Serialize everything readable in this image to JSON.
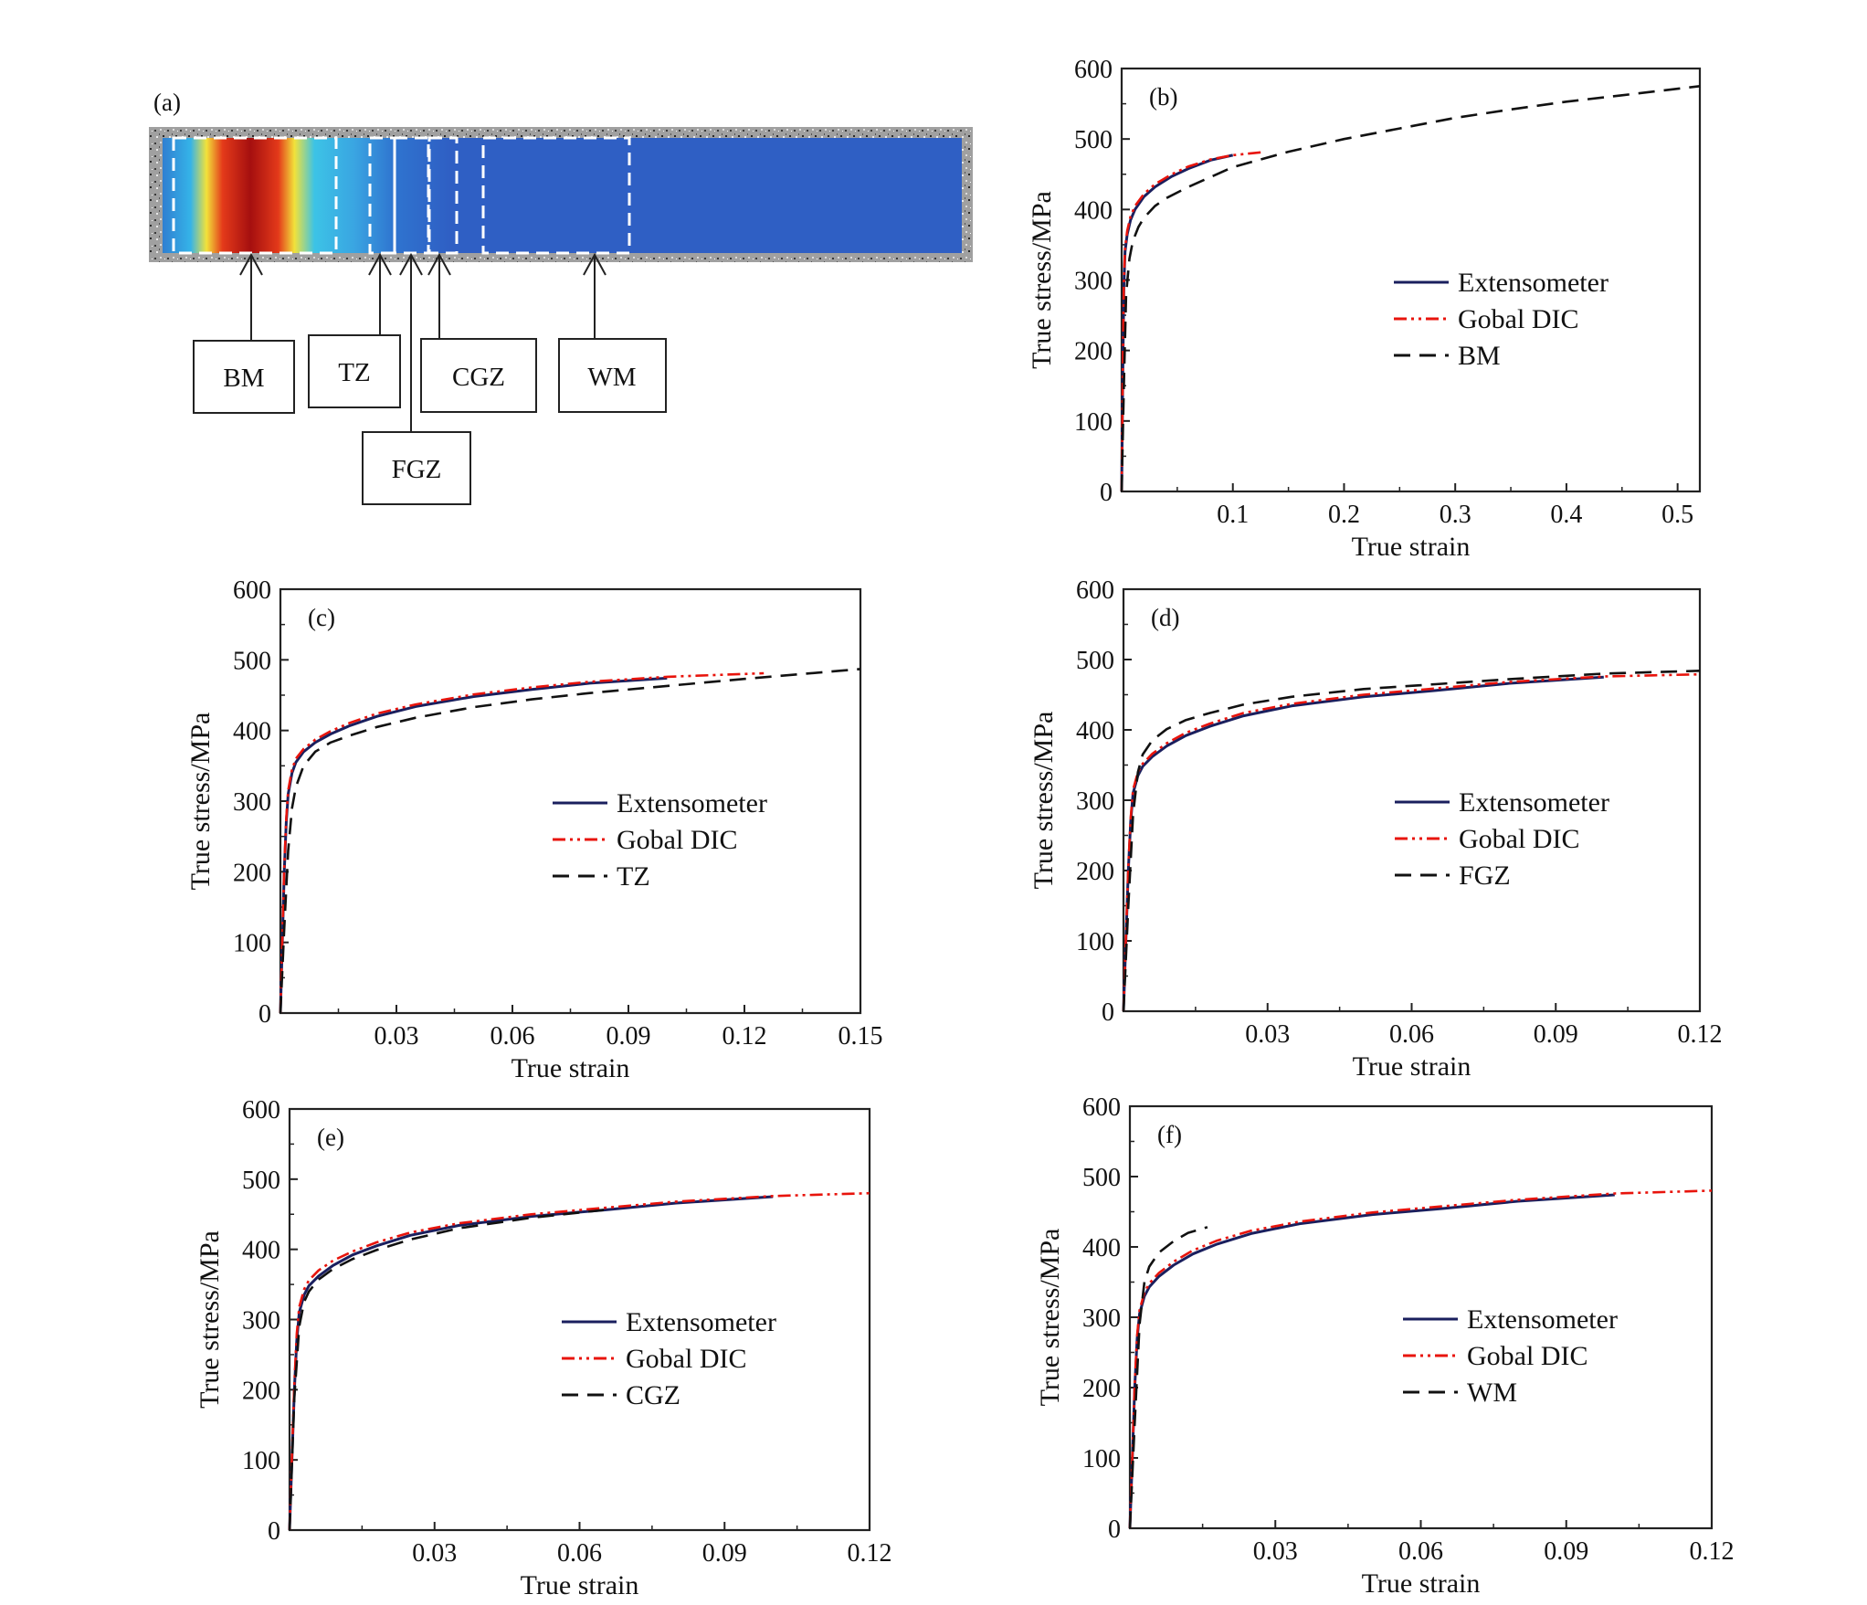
{
  "figure": {
    "panel_a": {
      "tag": "(a)",
      "zones": [
        "BM",
        "TZ",
        "FGZ",
        "CGZ",
        "WM"
      ],
      "colors": {
        "hot": "#a50f0f",
        "cold": "#2f5fc4",
        "speckle": "#8a8a8a",
        "box": "#ffffff"
      }
    }
  },
  "series_colors": {
    "Extensometer": "#1a1f5e",
    "Gobal DIC": "#e8140c",
    "zone": "#111111"
  },
  "chart_data": [
    {
      "panel": "(b)",
      "type": "line",
      "xlabel": "True strain",
      "ylabel": "True stress/MPa",
      "xlim": [
        0,
        0.52
      ],
      "ylim": [
        0,
        600
      ],
      "xticks": [
        0.1,
        0.2,
        0.3,
        0.4,
        0.5
      ],
      "xtick_labels": [
        "0.1",
        "0.2",
        "0.3",
        "0.4",
        "0.5"
      ],
      "yticks": [
        0,
        100,
        200,
        300,
        400,
        500,
        600
      ],
      "ytick_labels": [
        "0",
        "100",
        "200",
        "300",
        "400",
        "500",
        "600"
      ],
      "legend_position": "middle-right",
      "series": [
        {
          "name": "Extensometer",
          "style": "solid",
          "x": [
            0,
            0.001,
            0.002,
            0.003,
            0.005,
            0.008,
            0.012,
            0.02,
            0.03,
            0.045,
            0.06,
            0.08,
            0.1
          ],
          "y": [
            0,
            160,
            290,
            340,
            365,
            385,
            400,
            418,
            432,
            447,
            458,
            470,
            477
          ]
        },
        {
          "name": "Gobal DIC",
          "style": "dashdot",
          "x": [
            0,
            0.001,
            0.002,
            0.003,
            0.005,
            0.008,
            0.012,
            0.02,
            0.03,
            0.045,
            0.06,
            0.08,
            0.1,
            0.125
          ],
          "y": [
            0,
            165,
            295,
            345,
            370,
            390,
            405,
            422,
            436,
            450,
            461,
            471,
            477,
            481
          ]
        },
        {
          "name": "BM",
          "style": "dashed",
          "x": [
            0,
            0.002,
            0.004,
            0.007,
            0.01,
            0.015,
            0.02,
            0.03,
            0.04,
            0.06,
            0.08,
            0.1,
            0.15,
            0.2,
            0.25,
            0.3,
            0.35,
            0.4,
            0.45,
            0.52
          ],
          "y": [
            0,
            150,
            280,
            330,
            355,
            375,
            388,
            405,
            416,
            432,
            446,
            460,
            482,
            500,
            515,
            530,
            542,
            553,
            562,
            575
          ]
        }
      ]
    },
    {
      "panel": "(c)",
      "type": "line",
      "xlabel": "True strain",
      "ylabel": "True stress/MPa",
      "xlim": [
        0,
        0.15
      ],
      "ylim": [
        0,
        600
      ],
      "xticks": [
        0.03,
        0.06,
        0.09,
        0.12,
        0.15
      ],
      "xtick_labels": [
        "0.03",
        "0.06",
        "0.09",
        "0.12",
        "0.15"
      ],
      "yticks": [
        0,
        100,
        200,
        300,
        400,
        500,
        600
      ],
      "ytick_labels": [
        "0",
        "100",
        "200",
        "300",
        "400",
        "500",
        "600"
      ],
      "legend_position": "middle-right",
      "series": [
        {
          "name": "Extensometer",
          "style": "solid",
          "x": [
            0,
            0.0005,
            0.001,
            0.0015,
            0.002,
            0.003,
            0.004,
            0.006,
            0.009,
            0.013,
            0.018,
            0.025,
            0.035,
            0.05,
            0.065,
            0.08,
            0.1
          ],
          "y": [
            0,
            100,
            200,
            270,
            310,
            340,
            355,
            370,
            383,
            395,
            407,
            420,
            434,
            448,
            458,
            467,
            474
          ]
        },
        {
          "name": "Gobal DIC",
          "style": "dashdot",
          "x": [
            0,
            0.0005,
            0.001,
            0.0015,
            0.002,
            0.003,
            0.004,
            0.006,
            0.009,
            0.013,
            0.018,
            0.025,
            0.035,
            0.05,
            0.065,
            0.08,
            0.1,
            0.125
          ],
          "y": [
            0,
            105,
            205,
            275,
            315,
            345,
            360,
            374,
            387,
            399,
            411,
            424,
            437,
            451,
            461,
            469,
            476,
            481
          ]
        },
        {
          "name": "TZ",
          "style": "dashed",
          "x": [
            0,
            0.001,
            0.002,
            0.003,
            0.004,
            0.006,
            0.009,
            0.013,
            0.018,
            0.025,
            0.035,
            0.05,
            0.065,
            0.08,
            0.1,
            0.12,
            0.15
          ],
          "y": [
            0,
            120,
            230,
            290,
            320,
            350,
            370,
            383,
            393,
            405,
            418,
            433,
            444,
            453,
            463,
            473,
            487
          ]
        }
      ]
    },
    {
      "panel": "(d)",
      "type": "line",
      "xlabel": "True strain",
      "ylabel": "True stress/MPa",
      "xlim": [
        0,
        0.12
      ],
      "ylim": [
        0,
        600
      ],
      "xticks": [
        0.03,
        0.06,
        0.09,
        0.12
      ],
      "xtick_labels": [
        "0.03",
        "0.06",
        "0.09",
        "0.12"
      ],
      "yticks": [
        0,
        100,
        200,
        300,
        400,
        500,
        600
      ],
      "ytick_labels": [
        "0",
        "100",
        "200",
        "300",
        "400",
        "500",
        "600"
      ],
      "legend_position": "middle-right",
      "series": [
        {
          "name": "Extensometer",
          "style": "solid",
          "x": [
            0,
            0.0005,
            0.001,
            0.0015,
            0.002,
            0.003,
            0.004,
            0.006,
            0.009,
            0.013,
            0.018,
            0.025,
            0.035,
            0.05,
            0.065,
            0.08,
            0.1
          ],
          "y": [
            0,
            100,
            200,
            270,
            310,
            335,
            348,
            362,
            377,
            392,
            405,
            420,
            434,
            447,
            456,
            466,
            475
          ]
        },
        {
          "name": "Gobal DIC",
          "style": "dashdot",
          "x": [
            0,
            0.0005,
            0.001,
            0.0015,
            0.002,
            0.003,
            0.004,
            0.006,
            0.009,
            0.013,
            0.018,
            0.025,
            0.035,
            0.05,
            0.065,
            0.08,
            0.1,
            0.12
          ],
          "y": [
            0,
            102,
            205,
            275,
            315,
            340,
            352,
            366,
            381,
            396,
            409,
            424,
            437,
            450,
            459,
            468,
            476,
            479
          ]
        },
        {
          "name": "FGZ",
          "style": "dashed",
          "x": [
            0,
            0.001,
            0.002,
            0.003,
            0.004,
            0.006,
            0.009,
            0.013,
            0.018,
            0.025,
            0.035,
            0.05,
            0.065,
            0.08,
            0.1,
            0.12
          ],
          "y": [
            0,
            150,
            280,
            340,
            365,
            385,
            401,
            414,
            424,
            436,
            447,
            458,
            465,
            472,
            480,
            484
          ]
        }
      ]
    },
    {
      "panel": "(e)",
      "type": "line",
      "xlabel": "True strain",
      "ylabel": "True stress/MPa",
      "xlim": [
        0,
        0.12
      ],
      "ylim": [
        0,
        600
      ],
      "xticks": [
        0.03,
        0.06,
        0.09,
        0.12
      ],
      "xtick_labels": [
        "0.03",
        "0.06",
        "0.09",
        "0.12"
      ],
      "yticks": [
        0,
        100,
        200,
        300,
        400,
        500,
        600
      ],
      "ytick_labels": [
        "0",
        "100",
        "200",
        "300",
        "400",
        "500",
        "600"
      ],
      "legend_position": "middle-right",
      "series": [
        {
          "name": "Extensometer",
          "style": "solid",
          "x": [
            0,
            0.0005,
            0.001,
            0.0015,
            0.002,
            0.003,
            0.004,
            0.006,
            0.009,
            0.013,
            0.018,
            0.025,
            0.035,
            0.05,
            0.065,
            0.08,
            0.1
          ],
          "y": [
            0,
            100,
            200,
            270,
            310,
            335,
            348,
            362,
            377,
            392,
            405,
            420,
            434,
            447,
            456,
            466,
            475
          ]
        },
        {
          "name": "Gobal DIC",
          "style": "dashdot",
          "x": [
            0,
            0.0005,
            0.001,
            0.0015,
            0.002,
            0.003,
            0.004,
            0.006,
            0.009,
            0.013,
            0.018,
            0.025,
            0.035,
            0.05,
            0.065,
            0.08,
            0.1,
            0.12
          ],
          "y": [
            0,
            105,
            210,
            280,
            318,
            343,
            356,
            370,
            384,
            397,
            410,
            424,
            437,
            450,
            459,
            468,
            476,
            480
          ]
        },
        {
          "name": "CGZ",
          "style": "dashed",
          "x": [
            0,
            0.001,
            0.002,
            0.003,
            0.004,
            0.006,
            0.009,
            0.013,
            0.018,
            0.025,
            0.035,
            0.05,
            0.065
          ],
          "y": [
            0,
            190,
            290,
            325,
            340,
            357,
            372,
            386,
            399,
            414,
            430,
            445,
            456
          ]
        }
      ]
    },
    {
      "panel": "(f)",
      "type": "line",
      "xlabel": "True strain",
      "ylabel": "True stress/MPa",
      "xlim": [
        0,
        0.12
      ],
      "ylim": [
        0,
        600
      ],
      "xticks": [
        0.03,
        0.06,
        0.09,
        0.12
      ],
      "xtick_labels": [
        "0.03",
        "0.06",
        "0.09",
        "0.12"
      ],
      "yticks": [
        0,
        100,
        200,
        300,
        400,
        500,
        600
      ],
      "ytick_labels": [
        "0",
        "100",
        "200",
        "300",
        "400",
        "500",
        "600"
      ],
      "legend_position": "middle-right",
      "series": [
        {
          "name": "Extensometer",
          "style": "solid",
          "x": [
            0,
            0.0005,
            0.001,
            0.0015,
            0.002,
            0.003,
            0.004,
            0.006,
            0.009,
            0.013,
            0.018,
            0.025,
            0.035,
            0.05,
            0.065,
            0.08,
            0.1
          ],
          "y": [
            0,
            100,
            200,
            270,
            305,
            330,
            343,
            358,
            374,
            390,
            404,
            419,
            433,
            446,
            455,
            465,
            474
          ]
        },
        {
          "name": "Gobal DIC",
          "style": "dashdot",
          "x": [
            0,
            0.0005,
            0.001,
            0.0015,
            0.002,
            0.003,
            0.004,
            0.006,
            0.009,
            0.013,
            0.018,
            0.025,
            0.035,
            0.05,
            0.065,
            0.08,
            0.1,
            0.12
          ],
          "y": [
            0,
            102,
            205,
            275,
            310,
            335,
            348,
            363,
            379,
            395,
            409,
            423,
            436,
            449,
            458,
            467,
            476,
            480
          ]
        },
        {
          "name": "WM",
          "style": "dashed",
          "x": [
            0,
            0.001,
            0.002,
            0.003,
            0.004,
            0.006,
            0.009,
            0.012,
            0.016
          ],
          "y": [
            0,
            150,
            290,
            350,
            372,
            392,
            408,
            420,
            428
          ]
        }
      ]
    }
  ]
}
